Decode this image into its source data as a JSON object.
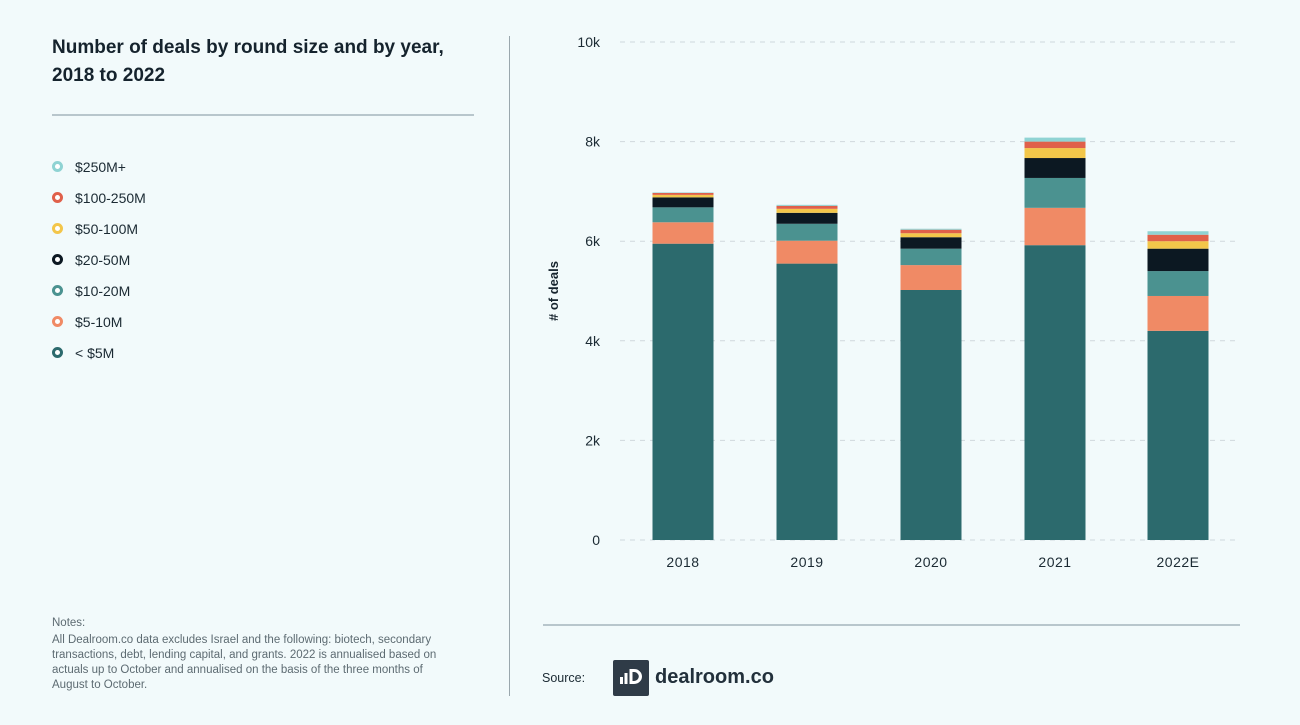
{
  "header": {
    "title": "Number of deals by round size and by year, 2018 to 2022"
  },
  "legend": [
    {
      "label": "$250M+",
      "color": "#8fd3d3"
    },
    {
      "label": "$100-250M",
      "color": "#e0604a"
    },
    {
      "label": "$50-100M",
      "color": "#f3c64a"
    },
    {
      "label": "$20-50M",
      "color": "#0c1822"
    },
    {
      "label": "$10-20M",
      "color": "#4b9290"
    },
    {
      "label": "$5-10M",
      "color": "#f08a65"
    },
    {
      "label": "< $5M",
      "color": "#2c6a6d"
    }
  ],
  "notes": {
    "heading": "Notes:",
    "body": "All Dealroom.co data excludes Israel and the following: biotech, secondary transactions, debt, lending capital, and grants. 2022 is annualised based on actuals up to October and annualised on the basis of the three months of August to October."
  },
  "footer": {
    "source_label": "Source:",
    "brand": "dealroom.co"
  },
  "chart_data": {
    "type": "bar",
    "stacked": true,
    "categories": [
      "2018",
      "2019",
      "2020",
      "2021",
      "2022E"
    ],
    "ylabel": "# of deals",
    "xlabel": "",
    "ylim": [
      0,
      10000
    ],
    "yticks": [
      {
        "value": 0,
        "label": "0"
      },
      {
        "value": 2000,
        "label": "2k"
      },
      {
        "value": 4000,
        "label": "4k"
      },
      {
        "value": 6000,
        "label": "6k"
      },
      {
        "value": 8000,
        "label": "8k"
      },
      {
        "value": 10000,
        "label": "10k"
      }
    ],
    "grid": true,
    "series": [
      {
        "name": "< $5M",
        "color": "#2c6a6d",
        "values": [
          5950,
          5550,
          5020,
          5920,
          4200
        ]
      },
      {
        "name": "$5-10M",
        "color": "#f08a65",
        "values": [
          430,
          460,
          500,
          750,
          700
        ]
      },
      {
        "name": "$10-20M",
        "color": "#4b9290",
        "values": [
          300,
          340,
          330,
          600,
          500
        ]
      },
      {
        "name": "$20-50M",
        "color": "#0c1822",
        "values": [
          200,
          220,
          230,
          400,
          450
        ]
      },
      {
        "name": "$50-100M",
        "color": "#f3c64a",
        "values": [
          50,
          80,
          80,
          200,
          150
        ]
      },
      {
        "name": "$100-250M",
        "color": "#e0604a",
        "values": [
          40,
          60,
          70,
          130,
          130
        ]
      },
      {
        "name": "$250M+",
        "color": "#8fd3d3",
        "values": [
          10,
          20,
          20,
          80,
          70
        ]
      }
    ]
  }
}
